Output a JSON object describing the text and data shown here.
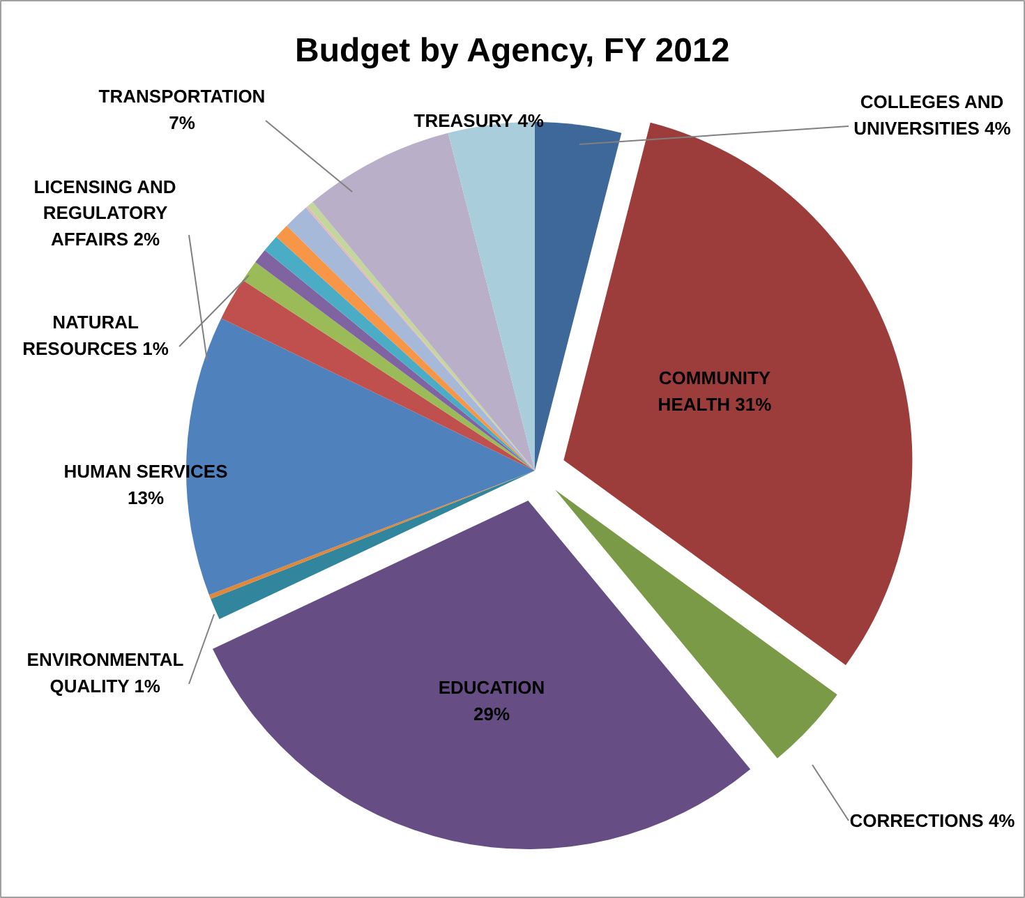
{
  "chart_data": {
    "type": "pie",
    "title": "Budget by Agency, FY 2012",
    "categories": [
      "COLLEGES AND UNIVERSITIES",
      "COMMUNITY HEALTH",
      "CORRECTIONS",
      "EDUCATION",
      "ENVIRONMENTAL QUALITY",
      null,
      "HUMAN SERVICES",
      "LICENSING AND REGULATORY AFFAIRS",
      "NATURAL RESOURCES",
      null,
      null,
      null,
      null,
      null,
      null,
      "TRANSPORTATION",
      "TREASURY"
    ],
    "values": [
      4,
      31,
      4,
      29,
      1,
      0.2,
      13,
      2,
      1,
      0.7,
      0.8,
      0.7,
      1.2,
      0.1,
      0.3,
      7,
      4
    ],
    "colors": [
      "#3f689a",
      "#9c3d3b",
      "#7b9a48",
      "#664e85",
      "#31859c",
      "#e0883a",
      "#4f81bd",
      "#c0504d",
      "#9bbb59",
      "#8064a2",
      "#4bacc6",
      "#f79646",
      "#a7b9d8",
      "#e6b9b8",
      "#c3d69b",
      "#b9afc9",
      "#a9cdda"
    ],
    "value_labels": [
      "4%",
      "31%",
      "4%",
      "29%",
      "1%",
      null,
      "13%",
      "2%",
      "1%",
      null,
      null,
      null,
      null,
      null,
      null,
      "7%",
      "4%"
    ]
  }
}
